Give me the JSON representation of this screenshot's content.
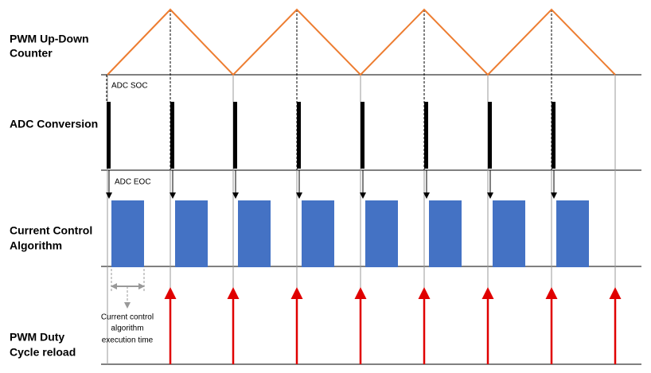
{
  "rows": [
    {
      "label": [
        "PWM Up-Down",
        "Counter"
      ]
    },
    {
      "label": [
        "ADC Conversion"
      ]
    },
    {
      "label": [
        "Current Control",
        "Algorithm"
      ]
    },
    {
      "label": [
        "PWM Duty",
        "Cycle reload"
      ]
    }
  ],
  "annotations": {
    "adc_soc": "ADC SOC",
    "adc_eoc": "ADC EOC",
    "execution_time": [
      "Current control",
      "algorithm",
      "execution time"
    ]
  }
}
